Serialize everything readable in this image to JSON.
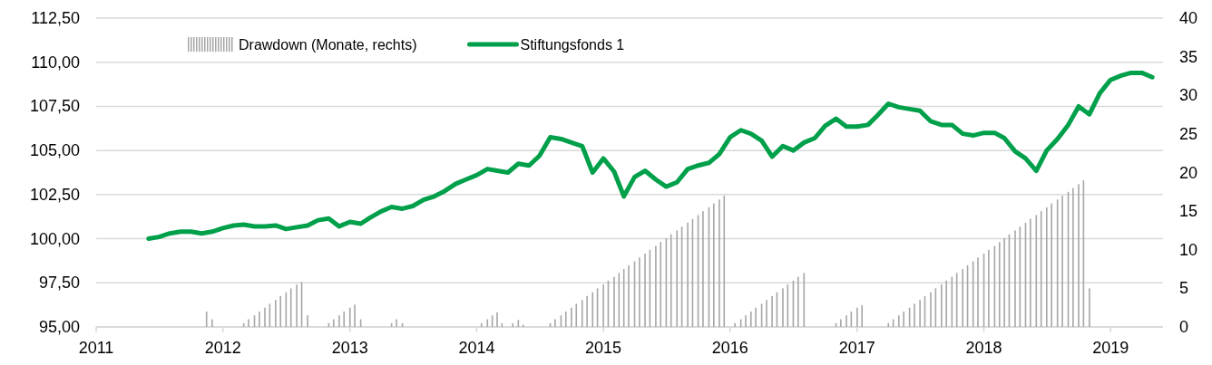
{
  "chart_data": {
    "type": "line",
    "xlim": [
      "2011-01-01",
      "2019-06-01"
    ],
    "xticks": [
      "2011",
      "2012",
      "2013",
      "2014",
      "2015",
      "2016",
      "2017",
      "2018",
      "2019"
    ],
    "ylim": [
      95,
      112.5
    ],
    "yticks": [
      {
        "value": 95,
        "label": "95,00"
      },
      {
        "value": 97.5,
        "label": "97,50"
      },
      {
        "value": 100,
        "label": "100,00"
      },
      {
        "value": 102.5,
        "label": "102,50"
      },
      {
        "value": 105,
        "label": "105,00"
      },
      {
        "value": 107.5,
        "label": "107,50"
      },
      {
        "value": 110,
        "label": "110,00"
      },
      {
        "value": 112.5,
        "label": "112,50"
      }
    ],
    "y2lim": [
      0,
      40
    ],
    "y2ticks": [
      0,
      5,
      10,
      15,
      20,
      25,
      30,
      35,
      40
    ],
    "grid": "y",
    "legend": "top",
    "series": [
      {
        "name": "Drawdown (Monate, rechts)",
        "type": "bar",
        "axis": "y2",
        "color": "#a6a6a6",
        "x": [
          "2011-11-15",
          "2011-12-01",
          "2012-03-01",
          "2012-03-15",
          "2012-04-01",
          "2012-04-15",
          "2012-05-01",
          "2012-05-15",
          "2012-06-01",
          "2012-06-15",
          "2012-07-01",
          "2012-07-15",
          "2012-08-01",
          "2012-08-15",
          "2012-09-01",
          "2012-11-01",
          "2012-11-15",
          "2012-12-01",
          "2012-12-15",
          "2013-01-01",
          "2013-01-15",
          "2013-02-01",
          "2013-05-01",
          "2013-05-15",
          "2013-06-01",
          "2014-01-15",
          "2014-02-01",
          "2014-02-15",
          "2014-03-01",
          "2014-03-15",
          "2014-04-15",
          "2014-05-01",
          "2014-05-15",
          "2014-08-01",
          "2014-08-15",
          "2014-09-01",
          "2014-09-15",
          "2014-10-01",
          "2014-10-15",
          "2014-11-01",
          "2014-11-15",
          "2014-12-01",
          "2014-12-15",
          "2015-01-01",
          "2015-01-15",
          "2015-02-01",
          "2015-02-15",
          "2015-03-01",
          "2015-03-15",
          "2015-04-01",
          "2015-04-15",
          "2015-05-01",
          "2015-05-15",
          "2015-06-01",
          "2015-06-15",
          "2015-07-01",
          "2015-07-15",
          "2015-08-01",
          "2015-08-15",
          "2015-09-01",
          "2015-09-15",
          "2015-10-01",
          "2015-10-15",
          "2015-11-01",
          "2015-11-15",
          "2015-12-01",
          "2015-12-15",
          "2016-01-15",
          "2016-02-01",
          "2016-02-15",
          "2016-03-01",
          "2016-03-15",
          "2016-04-01",
          "2016-04-15",
          "2016-05-01",
          "2016-05-15",
          "2016-06-01",
          "2016-06-15",
          "2016-07-01",
          "2016-07-15",
          "2016-08-01",
          "2016-11-01",
          "2016-11-15",
          "2016-12-01",
          "2016-12-15",
          "2017-01-01",
          "2017-01-15",
          "2017-04-01",
          "2017-04-15",
          "2017-05-01",
          "2017-05-15",
          "2017-06-01",
          "2017-06-15",
          "2017-07-01",
          "2017-07-15",
          "2017-08-01",
          "2017-08-15",
          "2017-09-01",
          "2017-09-15",
          "2017-10-01",
          "2017-10-15",
          "2017-11-01",
          "2017-11-15",
          "2017-12-01",
          "2017-12-15",
          "2018-01-01",
          "2018-01-15",
          "2018-02-01",
          "2018-02-15",
          "2018-03-01",
          "2018-03-15",
          "2018-04-01",
          "2018-04-15",
          "2018-05-01",
          "2018-05-15",
          "2018-06-01",
          "2018-06-15",
          "2018-07-01",
          "2018-07-15",
          "2018-08-01",
          "2018-08-15",
          "2018-09-01",
          "2018-09-15",
          "2018-10-01",
          "2018-10-15",
          "2018-11-01"
        ],
        "values": [
          2,
          1,
          0.5,
          1,
          1.5,
          2,
          2.5,
          3,
          3.5,
          4,
          4.5,
          5,
          5.5,
          5.8,
          1.5,
          0.5,
          1,
          1.5,
          2,
          2.5,
          2.9,
          1,
          0.5,
          1,
          0.5,
          0.5,
          1,
          1.5,
          1.9,
          0.5,
          0.5,
          0.9,
          0.3,
          0.5,
          1,
          1.5,
          2,
          2.5,
          3,
          3.5,
          4,
          4.5,
          5,
          5.5,
          6,
          6.5,
          7,
          7.5,
          8,
          8.5,
          9,
          9.5,
          10,
          10.5,
          11,
          11.5,
          12,
          12.5,
          13,
          13.5,
          14,
          14.5,
          15,
          15.5,
          16,
          16.5,
          17,
          0.5,
          1,
          1.5,
          2,
          2.5,
          3,
          3.5,
          4,
          4.5,
          5,
          5.5,
          6,
          6.5,
          7,
          0.5,
          1,
          1.5,
          2,
          2.5,
          2.8,
          0.5,
          1,
          1.5,
          2,
          2.5,
          3,
          3.5,
          4,
          4.5,
          5,
          5.5,
          6,
          6.5,
          7,
          7.5,
          8,
          8.5,
          9,
          9.5,
          10,
          10.5,
          11,
          11.5,
          12,
          12.5,
          13,
          13.5,
          14,
          14.5,
          15,
          15.5,
          16,
          16.5,
          17,
          17.5,
          18,
          18.5,
          19,
          5
        ]
      },
      {
        "name": "Stiftungsfonds 1",
        "axis": "y",
        "color": "#00a04b",
        "x": [
          "2011-06",
          "2011-07",
          "2011-08",
          "2011-09",
          "2011-10",
          "2011-11",
          "2011-12",
          "2012-01",
          "2012-02",
          "2012-03",
          "2012-04",
          "2012-05",
          "2012-06",
          "2012-07",
          "2012-08",
          "2012-09",
          "2012-10",
          "2012-11",
          "2012-12",
          "2013-01",
          "2013-02",
          "2013-03",
          "2013-04",
          "2013-05",
          "2013-06",
          "2013-07",
          "2013-08",
          "2013-09",
          "2013-10",
          "2013-11",
          "2013-12",
          "2014-01",
          "2014-02",
          "2014-03",
          "2014-04",
          "2014-05",
          "2014-06",
          "2014-07",
          "2014-08",
          "2014-09",
          "2014-10",
          "2014-11",
          "2014-12",
          "2015-01",
          "2015-02",
          "2015-03",
          "2015-04",
          "2015-05",
          "2015-06",
          "2015-07",
          "2015-08",
          "2015-09",
          "2015-10",
          "2015-11",
          "2015-12",
          "2016-01",
          "2016-02",
          "2016-03",
          "2016-04",
          "2016-05",
          "2016-06",
          "2016-07",
          "2016-08",
          "2016-09",
          "2016-10",
          "2016-11",
          "2016-12",
          "2017-01",
          "2017-02",
          "2017-03",
          "2017-04",
          "2017-05",
          "2017-06",
          "2017-07",
          "2017-08",
          "2017-09",
          "2017-10",
          "2017-11",
          "2017-12",
          "2018-01",
          "2018-02",
          "2018-03",
          "2018-04",
          "2018-05",
          "2018-06",
          "2018-07",
          "2018-08",
          "2018-09",
          "2018-10",
          "2018-11",
          "2018-12",
          "2019-01",
          "2019-02",
          "2019-03",
          "2019-04",
          "2019-05"
        ],
        "values": [
          100.0,
          100.1,
          100.3,
          100.4,
          100.4,
          100.3,
          100.4,
          100.6,
          100.75,
          100.8,
          100.7,
          100.7,
          100.75,
          100.55,
          100.65,
          100.75,
          101.05,
          101.15,
          100.7,
          100.95,
          100.85,
          101.2,
          101.55,
          101.8,
          101.7,
          101.85,
          102.2,
          102.4,
          102.7,
          103.1,
          103.35,
          103.6,
          103.95,
          103.85,
          103.75,
          104.25,
          104.15,
          104.7,
          105.75,
          105.65,
          105.45,
          105.25,
          103.75,
          104.55,
          103.8,
          102.4,
          103.5,
          103.85,
          103.35,
          102.95,
          103.2,
          103.95,
          104.15,
          104.3,
          104.8,
          105.75,
          106.15,
          105.95,
          105.55,
          104.65,
          105.25,
          105.0,
          105.45,
          105.7,
          106.4,
          106.8,
          106.35,
          106.35,
          106.45,
          107.0,
          107.65,
          107.45,
          107.35,
          107.25,
          106.65,
          106.45,
          106.45,
          105.95,
          105.85,
          106.0,
          106.0,
          105.7,
          104.95,
          104.55,
          103.85,
          105.0,
          105.65,
          106.45,
          107.5,
          107.05,
          108.25,
          109.0,
          109.25,
          109.4,
          109.4,
          109.15
        ]
      }
    ]
  }
}
